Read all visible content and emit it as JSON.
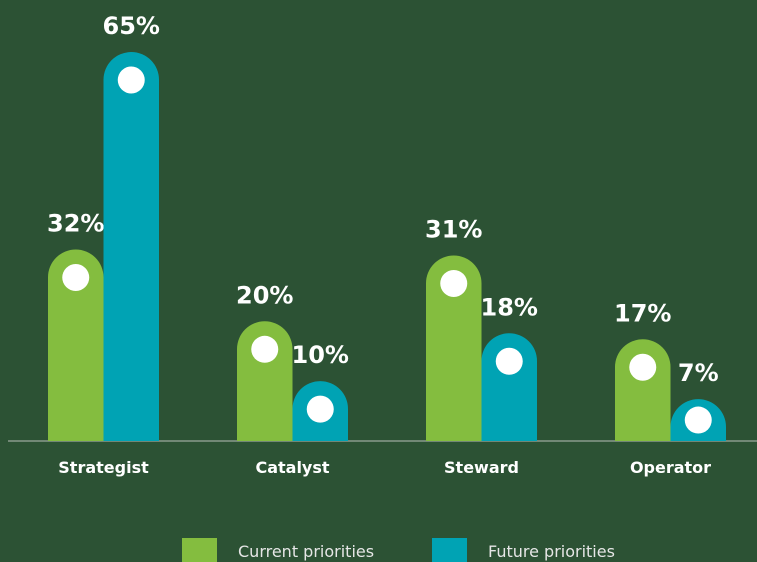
{
  "chart_data": {
    "type": "bar",
    "categories": [
      "Strategist",
      "Catalyst",
      "Steward",
      "Operator"
    ],
    "series": [
      {
        "name": "Current priorities",
        "color": "#84bd3f",
        "values": [
          32,
          20,
          31,
          17
        ],
        "value_labels": [
          "32%",
          "20%",
          "31%",
          "17%"
        ]
      },
      {
        "name": "Future priorities",
        "color": "#00a3b4",
        "values": [
          65,
          10,
          18,
          7
        ],
        "value_labels": [
          "65%",
          "10%",
          "18%",
          "7%"
        ]
      }
    ]
  }
}
